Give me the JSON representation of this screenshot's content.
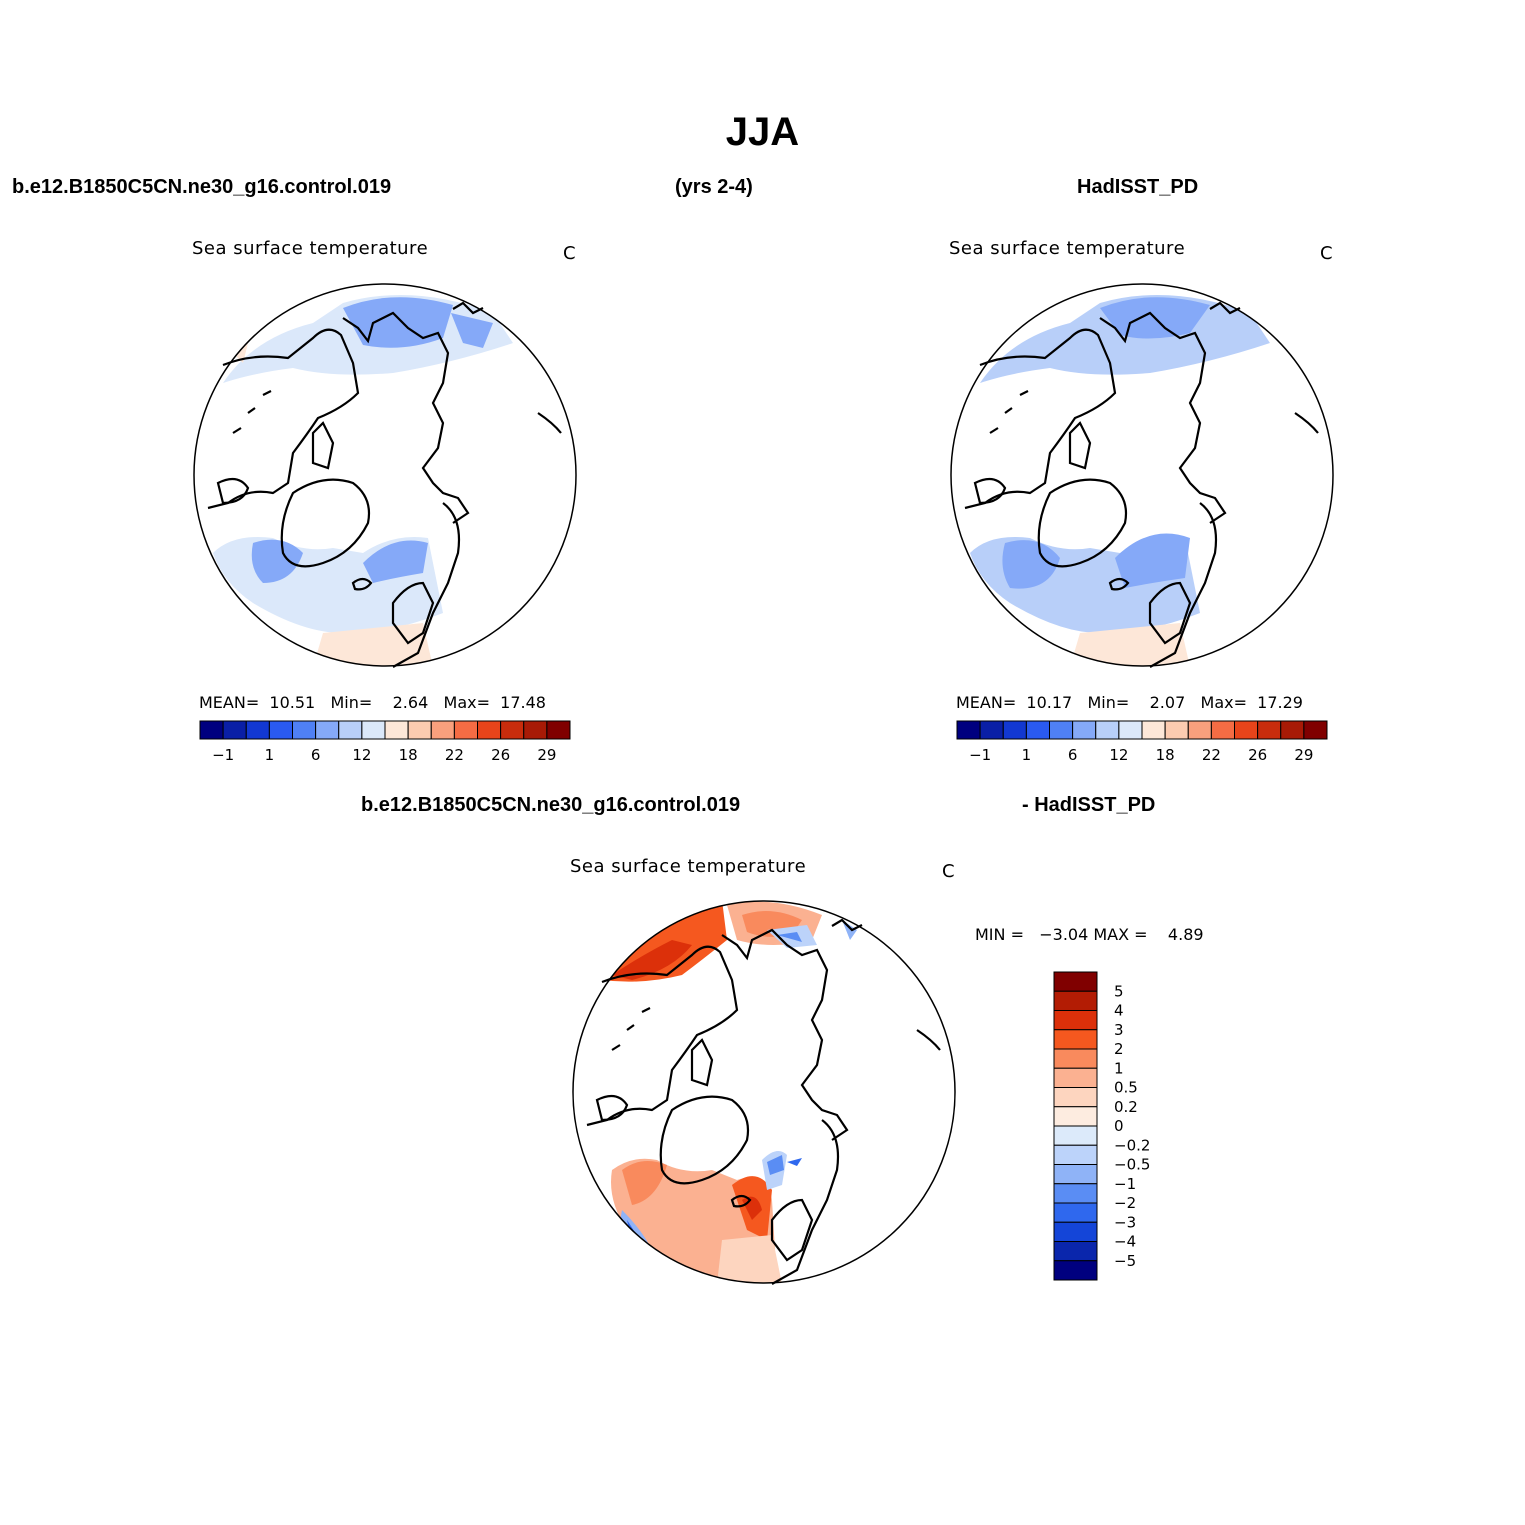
{
  "season_title": "JJA",
  "headers": {
    "case_name": "b.e12.B1850C5CN.ne30_g16.control.019",
    "years": "(yrs 2-4)",
    "obs_name": "HadISST_PD",
    "diff_case": "b.e12.B1850C5CN.ne30_g16.control.019",
    "diff_obs": "- HadISST_PD"
  },
  "chart_data": [
    {
      "type": "heatmap",
      "projection": "north polar stereographic",
      "title": "Sea surface temperature",
      "units": "C",
      "stats": {
        "mean_label": "MEAN=",
        "mean": "10.51",
        "min_label": "Min=",
        "min": "2.64",
        "max_label": "Max=",
        "max": "17.48"
      },
      "colorbar": {
        "orientation": "horizontal",
        "tick_labels": [
          "−1",
          "1",
          "6",
          "12",
          "18",
          "22",
          "26",
          "29"
        ],
        "levels": [
          -1,
          1,
          6,
          12,
          18,
          22,
          26,
          29
        ]
      }
    },
    {
      "type": "heatmap",
      "projection": "north polar stereographic",
      "title": "Sea surface temperature",
      "units": "C",
      "stats": {
        "mean_label": "MEAN=",
        "mean": "10.17",
        "min_label": "Min=",
        "min": "2.07",
        "max_label": "Max=",
        "max": "17.29"
      },
      "colorbar": {
        "orientation": "horizontal",
        "tick_labels": [
          "−1",
          "1",
          "6",
          "12",
          "18",
          "22",
          "26",
          "29"
        ],
        "levels": [
          -1,
          1,
          6,
          12,
          18,
          22,
          26,
          29
        ]
      }
    },
    {
      "type": "heatmap",
      "projection": "north polar stereographic",
      "title": "Sea surface temperature",
      "units": "C",
      "stats": {
        "min_label": "MIN =",
        "min": "−3.04",
        "max_label": "MAX =",
        "max": "4.89"
      },
      "colorbar": {
        "orientation": "vertical",
        "tick_labels": [
          "5",
          "4",
          "3",
          "2",
          "1",
          "0.5",
          "0.2",
          "0",
          "−0.2",
          "−0.5",
          "−1",
          "−2",
          "−3",
          "−4",
          "−5"
        ],
        "levels": [
          5,
          4,
          3,
          2,
          1,
          0.5,
          0.2,
          0,
          -0.2,
          -0.5,
          -1,
          -2,
          -3,
          -4,
          -5
        ]
      }
    }
  ],
  "colors": {
    "abs_scale": [
      "#00007f",
      "#0a1fa6",
      "#1238d2",
      "#2a5af0",
      "#4f80f5",
      "#85a9f8",
      "#b8cff9",
      "#dbe8fa",
      "#fde7d8",
      "#fccbb0",
      "#f9a07d",
      "#f56c44",
      "#e8441a",
      "#c82c0c",
      "#a81a06",
      "#800000"
    ],
    "diff_scale": [
      "#800000",
      "#b31c04",
      "#dc300a",
      "#f5581f",
      "#f98a5d",
      "#fbb191",
      "#fdd5bf",
      "#fdece0",
      "#dceafa",
      "#bcd3fa",
      "#8fb3f7",
      "#5a8df4",
      "#2f68ee",
      "#1445d8",
      "#0a26ac",
      "#00007f"
    ]
  }
}
